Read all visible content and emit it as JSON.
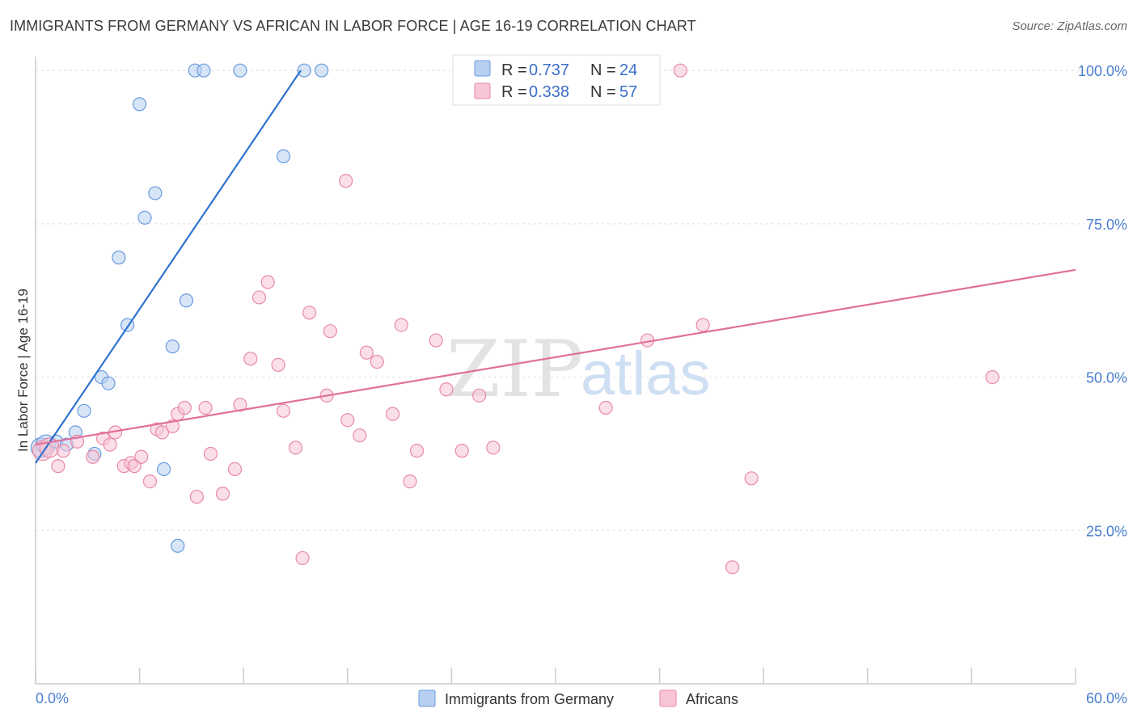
{
  "title": "IMMIGRANTS FROM GERMANY VS AFRICAN IN LABOR FORCE | AGE 16-19 CORRELATION CHART",
  "source": "Source: ZipAtlas.com",
  "watermark": {
    "zip": "ZIP",
    "atlas": "atlas"
  },
  "legend": {
    "r_label": "R = ",
    "n_label": "N = ",
    "rows": [
      {
        "r": "0.737",
        "n": "24",
        "fill": "#b7cff0",
        "stroke": "#6a9be0"
      },
      {
        "r": "0.338",
        "n": "57",
        "fill": "#f8c5d6",
        "stroke": "#e88aa8"
      }
    ]
  },
  "chart_data": {
    "type": "scatter",
    "title": "IMMIGRANTS FROM GERMANY VS AFRICAN IN LABOR FORCE | AGE 16-19 CORRELATION CHART",
    "xlabel": "",
    "ylabel": "In Labor Force | Age 16-19",
    "xlim": [
      0,
      60
    ],
    "ylim": [
      0,
      102
    ],
    "x_tick_labels": [
      "0.0%",
      "60.0%"
    ],
    "y_ticks": [
      25,
      50,
      75,
      100
    ],
    "y_tick_labels": [
      "25.0%",
      "50.0%",
      "75.0%",
      "100.0%"
    ],
    "grid": true,
    "legend_position": "top-center",
    "series": [
      {
        "name": "Immigrants from Germany",
        "color": "#6a9be0",
        "fill": "#b7cff0",
        "line_color": "#2f72d0",
        "trend": {
          "x": [
            0,
            15.3
          ],
          "y": [
            36.0,
            100.0
          ]
        },
        "points": [
          [
            0.3,
            38.5
          ],
          [
            0.6,
            39.0
          ],
          [
            1.2,
            39.5
          ],
          [
            1.8,
            39.0
          ],
          [
            2.3,
            41.0
          ],
          [
            2.8,
            44.5
          ],
          [
            3.4,
            37.5
          ],
          [
            3.8,
            50.0
          ],
          [
            4.2,
            49.0
          ],
          [
            4.8,
            69.5
          ],
          [
            5.3,
            58.5
          ],
          [
            6.0,
            94.5
          ],
          [
            6.3,
            76.0
          ],
          [
            6.9,
            80.0
          ],
          [
            7.4,
            35.0
          ],
          [
            7.9,
            55.0
          ],
          [
            8.2,
            22.5
          ],
          [
            8.7,
            62.5
          ],
          [
            9.2,
            100.0
          ],
          [
            9.7,
            100.0
          ],
          [
            11.8,
            100.0
          ],
          [
            14.3,
            86.0
          ],
          [
            15.5,
            100.0
          ],
          [
            16.5,
            100.0
          ]
        ]
      },
      {
        "name": "Africans",
        "color": "#e88aa8",
        "fill": "#f8c5d6",
        "line_color": "#e0709a",
        "trend": {
          "x": [
            0,
            60
          ],
          "y": [
            39.0,
            67.5
          ]
        },
        "points": [
          [
            0.4,
            38.0
          ],
          [
            1.3,
            35.5
          ],
          [
            2.4,
            39.5
          ],
          [
            3.3,
            37.0
          ],
          [
            3.9,
            40.0
          ],
          [
            4.3,
            39.0
          ],
          [
            4.6,
            41.0
          ],
          [
            5.1,
            35.5
          ],
          [
            5.5,
            36.0
          ],
          [
            5.7,
            35.5
          ],
          [
            6.1,
            37.0
          ],
          [
            6.6,
            33.0
          ],
          [
            7.0,
            41.5
          ],
          [
            7.3,
            41.0
          ],
          [
            7.9,
            42.0
          ],
          [
            8.2,
            44.0
          ],
          [
            8.6,
            45.0
          ],
          [
            9.3,
            30.5
          ],
          [
            9.8,
            45.0
          ],
          [
            10.1,
            37.5
          ],
          [
            10.8,
            31.0
          ],
          [
            11.5,
            35.0
          ],
          [
            11.8,
            45.5
          ],
          [
            12.4,
            53.0
          ],
          [
            12.9,
            63.0
          ],
          [
            13.4,
            65.5
          ],
          [
            14.0,
            52.0
          ],
          [
            14.3,
            44.5
          ],
          [
            15.0,
            38.5
          ],
          [
            15.4,
            20.5
          ],
          [
            15.8,
            60.5
          ],
          [
            16.8,
            47.0
          ],
          [
            17.0,
            57.5
          ],
          [
            17.9,
            82.0
          ],
          [
            18.0,
            43.0
          ],
          [
            18.7,
            40.5
          ],
          [
            19.1,
            54.0
          ],
          [
            19.7,
            52.5
          ],
          [
            20.6,
            44.0
          ],
          [
            21.1,
            58.5
          ],
          [
            21.6,
            33.0
          ],
          [
            22.0,
            38.0
          ],
          [
            23.1,
            56.0
          ],
          [
            23.7,
            48.0
          ],
          [
            24.6,
            38.0
          ],
          [
            25.6,
            47.0
          ],
          [
            26.4,
            38.5
          ],
          [
            32.0,
            100.0
          ],
          [
            32.9,
            45.0
          ],
          [
            35.3,
            56.0
          ],
          [
            37.2,
            100.0
          ],
          [
            38.5,
            58.5
          ],
          [
            40.2,
            19.0
          ],
          [
            41.3,
            33.5
          ],
          [
            55.2,
            50.0
          ],
          [
            0.8,
            38.5
          ],
          [
            1.6,
            38.0
          ]
        ]
      }
    ]
  },
  "bottom_legend": [
    {
      "label": "Immigrants from Germany",
      "fill": "#b7cff0",
      "stroke": "#6a9be0"
    },
    {
      "label": "Africans",
      "fill": "#f8c5d6",
      "stroke": "#e88aa8"
    }
  ]
}
